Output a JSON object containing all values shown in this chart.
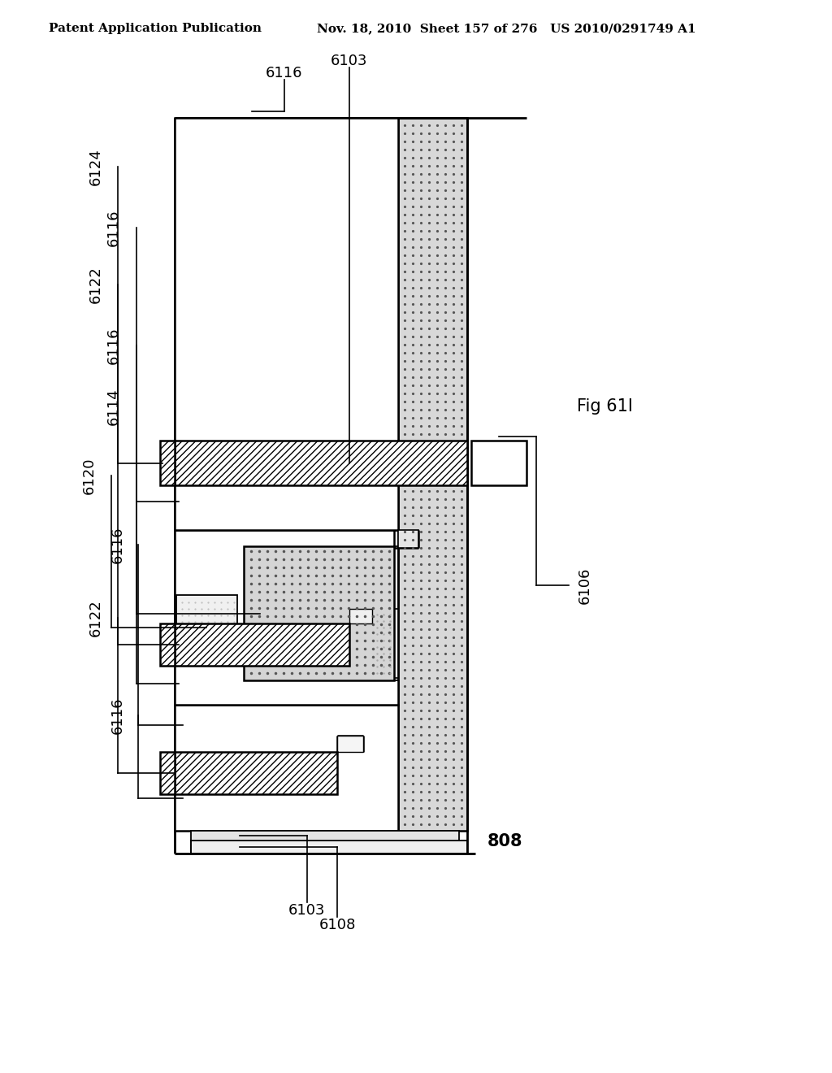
{
  "header_left": "Patent Application Publication",
  "header_right": "Nov. 18, 2010  Sheet 157 of 276   US 2010/0291749 A1",
  "fig_label": "Fig 61I",
  "background": "#ffffff"
}
